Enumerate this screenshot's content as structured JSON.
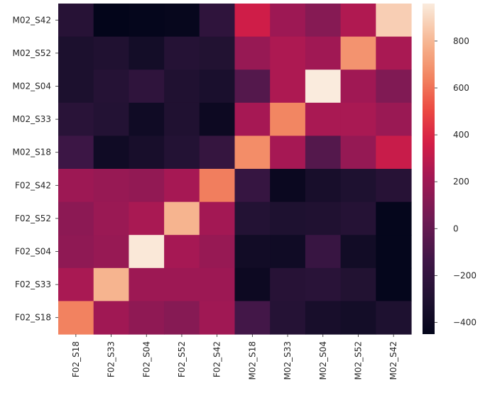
{
  "chart_data": {
    "type": "heatmap",
    "title": "",
    "xlabel": "",
    "ylabel": "",
    "x_categories": [
      "F02_S18",
      "F02_S33",
      "F02_S04",
      "F02_S52",
      "F02_S42",
      "M02_S18",
      "M02_S33",
      "M02_S04",
      "M02_S52",
      "M02_S42"
    ],
    "y_categories": [
      "M02_S42",
      "M02_S52",
      "M02_S04",
      "M02_S33",
      "M02_S18",
      "F02_S42",
      "F02_S52",
      "F02_S04",
      "F02_S33",
      "F02_S18"
    ],
    "values": [
      [
        -260,
        -450,
        -440,
        -430,
        -220,
        350,
        200,
        120,
        260,
        870
      ],
      [
        -320,
        -300,
        -360,
        -270,
        -290,
        180,
        250,
        210,
        690,
        240
      ],
      [
        -320,
        -270,
        -220,
        -300,
        -330,
        -60,
        250,
        960,
        210,
        100
      ],
      [
        -250,
        -280,
        -380,
        -300,
        -400,
        230,
        650,
        240,
        240,
        190
      ],
      [
        -150,
        -380,
        -340,
        -280,
        -190,
        670,
        230,
        -60,
        170,
        330
      ],
      [
        200,
        180,
        160,
        230,
        630,
        -180,
        -410,
        -340,
        -310,
        -260
      ],
      [
        140,
        190,
        240,
        790,
        220,
        -280,
        -310,
        -300,
        -270,
        -440
      ],
      [
        150,
        180,
        950,
        230,
        180,
        -370,
        -380,
        -170,
        -370,
        -440
      ],
      [
        240,
        790,
        200,
        200,
        200,
        -400,
        -260,
        -250,
        -290,
        -440
      ],
      [
        640,
        210,
        150,
        120,
        210,
        -120,
        -270,
        -340,
        -360,
        -310
      ]
    ],
    "colorbar": {
      "min": -450,
      "max": 960,
      "ticks": [
        -400,
        -200,
        0,
        200,
        400,
        600,
        800
      ]
    },
    "tick_labels": {
      "colorbar": [
        "−400",
        "−200",
        "0",
        "200",
        "400",
        "600",
        "800"
      ]
    },
    "colormap": "rocket",
    "grid": false
  }
}
